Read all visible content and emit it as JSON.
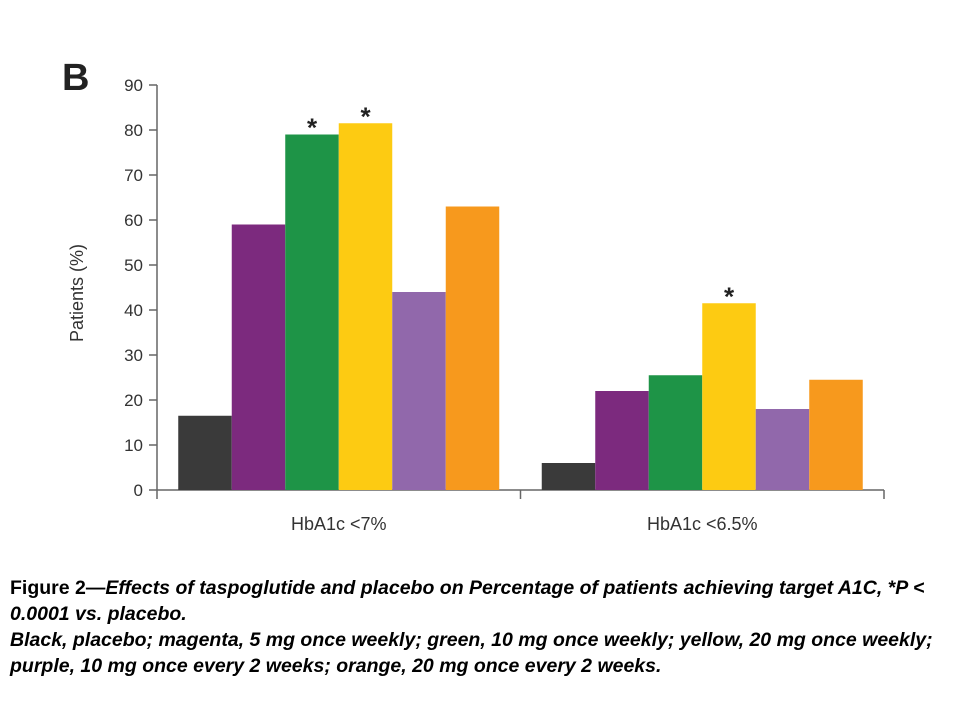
{
  "chart_data": {
    "type": "bar",
    "panel_label": "B",
    "ylabel": "Patients (%)",
    "ylim": [
      0,
      90
    ],
    "yticks": [
      0,
      10,
      20,
      30,
      40,
      50,
      60,
      70,
      80,
      90
    ],
    "categories": [
      "HbA1c <7%",
      "HbA1c <6.5%"
    ],
    "series": [
      {
        "color": "#3a3a3a",
        "values": [
          16.5,
          6
        ]
      },
      {
        "color": "#7c2a7e",
        "values": [
          59,
          22
        ]
      },
      {
        "color": "#1e9447",
        "values": [
          79,
          25.5
        ]
      },
      {
        "color": "#fdcb12",
        "values": [
          81.5,
          41.5
        ]
      },
      {
        "color": "#9168ab",
        "values": [
          44,
          18
        ]
      },
      {
        "color": "#f7991d",
        "values": [
          63,
          24.5
        ]
      }
    ],
    "annotations": [
      {
        "text": "*",
        "category": 0,
        "series": 2
      },
      {
        "text": "*",
        "category": 0,
        "series": 3
      },
      {
        "text": "*",
        "category": 1,
        "series": 3
      }
    ],
    "grid": false,
    "legend": "none"
  },
  "caption": {
    "lead": "Figure 2—",
    "line1": "Effects of taspoglutide and placebo on Percentage of patients achieving target A1C, *P < 0.0001 vs. placebo.",
    "line2": "Black, placebo; magenta, 5 mg once weekly; green, 10 mg once weekly; yellow, 20 mg once weekly; purple, 10 mg once every 2 weeks; orange, 20 mg once every 2 weeks."
  }
}
